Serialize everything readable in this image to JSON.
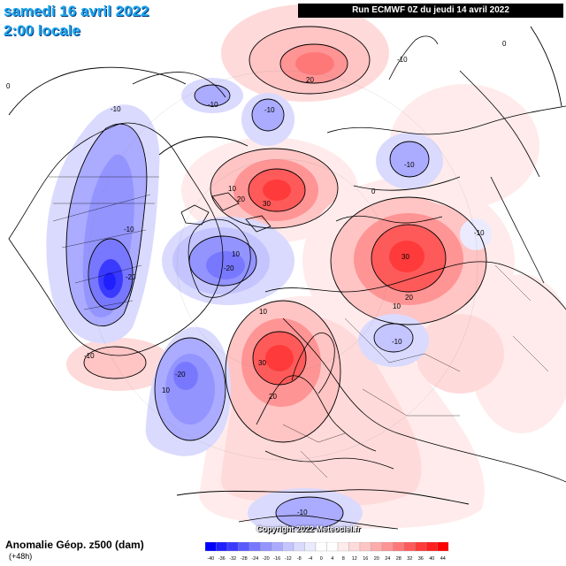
{
  "header": {
    "date": "samedi 16 avril 2022",
    "time": "2:00 locale",
    "run": "Run ECMWF 0Z du jeudi 14 avril 2022"
  },
  "footer": {
    "variable": "Anomalie Géop. z500 (dam)",
    "lead_time": "(+48h)",
    "copyright": "Copyright 2022 Meteociel.fr"
  },
  "colors": {
    "negative": [
      "#0000ff",
      "#1f1fff",
      "#3a3aff",
      "#5a5aff",
      "#7878ff",
      "#9494ff",
      "#ababff",
      "#c4c4ff",
      "#dadaff",
      "#ebebff"
    ],
    "positive": [
      "#ffebeb",
      "#ffdada",
      "#ffc4c4",
      "#ffabab",
      "#ff9494",
      "#ff7878",
      "#ff5a5a",
      "#ff3a3a",
      "#ff1f1f",
      "#ff0000"
    ],
    "neutral": "#ffffff"
  },
  "scale": {
    "labels": [
      "-40",
      "-36",
      "-32",
      "-28",
      "-24",
      "-20",
      "-16",
      "-12",
      "-8",
      "-4",
      "0",
      "4",
      "8",
      "12",
      "16",
      "20",
      "24",
      "28",
      "32",
      "36",
      "40",
      "44"
    ]
  },
  "contour_labels": [
    {
      "text": "-10",
      "region": "western Canada"
    },
    {
      "text": "-10",
      "region": "Greenland Sea"
    },
    {
      "text": "-10",
      "region": "Kara Sea"
    },
    {
      "text": "-10",
      "region": "East Siberia"
    },
    {
      "text": "-10",
      "region": "North Pacific"
    },
    {
      "text": "-10",
      "region": "Central Asia"
    },
    {
      "text": "-10",
      "region": "North Atlantic"
    },
    {
      "text": "-10",
      "region": "Northern Africa"
    },
    {
      "text": "-10",
      "region": "Arctic Canada"
    },
    {
      "text": "-10",
      "region": "Mid-Atlantic"
    },
    {
      "text": "-20",
      "region": "Central US"
    },
    {
      "text": "-20",
      "region": "Canadian Arctic"
    },
    {
      "text": "-20",
      "region": "North Atlantic"
    },
    {
      "text": "10",
      "region": "Europe"
    },
    {
      "text": "10",
      "region": "Laptev Sea"
    },
    {
      "text": "10",
      "region": "Arctic"
    },
    {
      "text": "10",
      "region": "West Siberia"
    },
    {
      "text": "10",
      "region": "Pacific"
    },
    {
      "text": "20",
      "region": "Bering Sea"
    },
    {
      "text": "20",
      "region": "Chukotka"
    },
    {
      "text": "20",
      "region": "West Siberia"
    },
    {
      "text": "20",
      "region": "Scandinavia"
    },
    {
      "text": "30",
      "region": "Chukotka"
    },
    {
      "text": "30",
      "region": "West Siberia"
    },
    {
      "text": "30",
      "region": "Scandinavia"
    },
    {
      "text": "0",
      "region": "Alaska"
    },
    {
      "text": "0",
      "region": "Siberia"
    },
    {
      "text": "0",
      "region": "Pacific"
    }
  ]
}
